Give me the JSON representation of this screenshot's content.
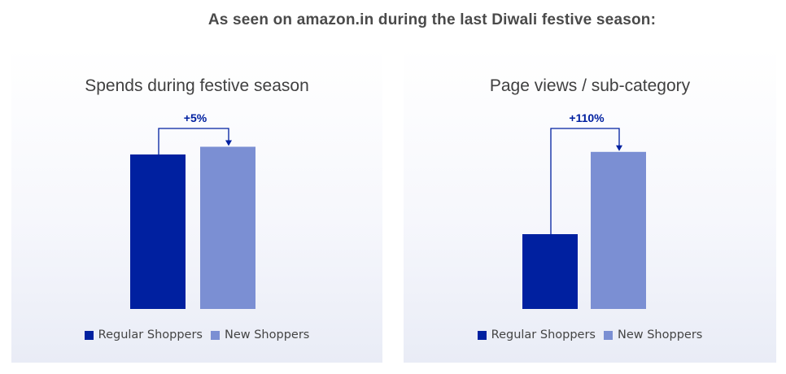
{
  "headline": "As seen on amazon.in during the last Diwali festive season:",
  "colors": {
    "regular": "#0020a0",
    "new": "#7b8fd3",
    "arrow": "#0020a0"
  },
  "chart_data": [
    {
      "type": "bar",
      "title": "Spends during festive season",
      "categories": [
        "Regular Shoppers",
        "New Shoppers"
      ],
      "values": [
        100,
        105
      ],
      "ylim": [
        0,
        110
      ],
      "annotation": "+5%",
      "legend": [
        "Regular Shoppers",
        "New Shoppers"
      ]
    },
    {
      "type": "bar",
      "title": "Page views / sub-category",
      "categories": [
        "Regular Shoppers",
        "New Shoppers"
      ],
      "values": [
        100,
        210
      ],
      "ylim": [
        0,
        220
      ],
      "annotation": "+110%",
      "legend": [
        "Regular Shoppers",
        "New Shoppers"
      ]
    }
  ]
}
